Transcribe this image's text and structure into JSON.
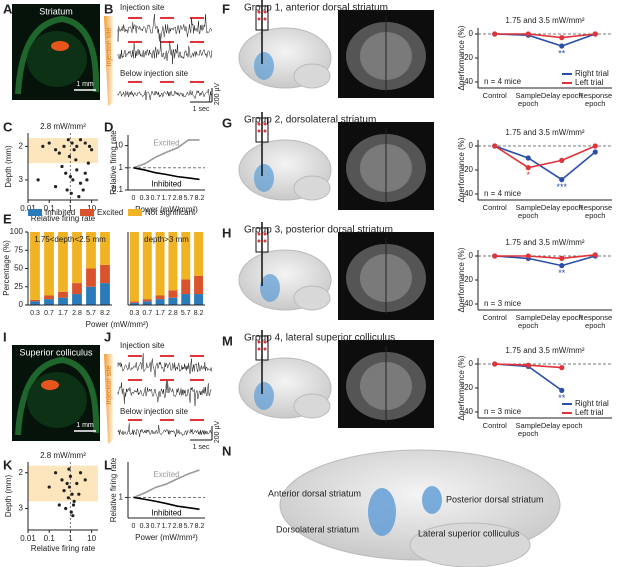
{
  "panel_letters": [
    "A",
    "B",
    "C",
    "D",
    "E",
    "I",
    "J",
    "K",
    "L",
    "F",
    "G",
    "H",
    "M",
    "N"
  ],
  "panels": {
    "A": {
      "title": "Striatum",
      "scale": "1 mm"
    },
    "B": {
      "side_label": "Injection site",
      "top_label": "Injection site",
      "below_label": "Below injection site",
      "voltage_scale": "200 µV",
      "time_scale": "1 sec"
    },
    "I": {
      "title": "Superior colliculus",
      "scale": "1 mm"
    },
    "J": {
      "side_label": "Injection site",
      "top_label": "Injection site",
      "below_label": "Below injection site",
      "voltage_scale": "200 µV",
      "time_scale": "1 sec"
    },
    "N": {
      "labels": [
        "Anterior dorsal striatum",
        "Posterior dorsal striatum",
        "Dorsolateral striatum",
        "Lateral superior colliculus"
      ]
    }
  },
  "chart_data": [
    {
      "type": "scatter",
      "title": "2.8 mW/mm²",
      "xlabel": "Relative firing rate",
      "ylabel": "Depth (mm)",
      "x_log": true,
      "y_inverted": true,
      "xlim": [
        0.01,
        20
      ],
      "xticks": [
        0.01,
        0.1,
        1,
        10
      ],
      "ylim": [
        1.6,
        3.6
      ],
      "yticks": [
        2,
        3
      ],
      "highlight_range": [
        1.75,
        2.5
      ],
      "reference_line": 1,
      "color": "#222222",
      "x": [
        0.05,
        0.1,
        0.2,
        0.3,
        0.5,
        0.8,
        1.2,
        1.5,
        2,
        3,
        5,
        8,
        10,
        0.4,
        0.6,
        1,
        1.3,
        2,
        3,
        5,
        0.2,
        0.7,
        1.1,
        4,
        7,
        0.03,
        1.8,
        0.9,
        2.5,
        6
      ],
      "values": [
        2.0,
        1.9,
        2.1,
        2.2,
        2.0,
        1.8,
        1.9,
        2.1,
        2.0,
        1.8,
        1.9,
        2.0,
        2.1,
        2.6,
        2.8,
        2.9,
        3.0,
        2.7,
        3.1,
        2.8,
        3.2,
        3.3,
        3.4,
        3.3,
        2.5,
        3.0,
        2.4,
        2.3,
        3.5,
        3.0
      ]
    },
    {
      "type": "scatter",
      "title": "2.8 mW/mm²",
      "xlabel": "Relative firing rate",
      "ylabel": "Depth (mm)",
      "x_log": true,
      "y_inverted": true,
      "xlim": [
        0.01,
        20
      ],
      "xticks": [
        0.01,
        0.1,
        1,
        10
      ],
      "ylim": [
        1.7,
        3.6
      ],
      "yticks": [
        2,
        3
      ],
      "highlight_range": [
        1.8,
        2.8
      ],
      "reference_line": 1,
      "color": "#222222",
      "x": [
        0.2,
        0.4,
        0.5,
        0.7,
        0.8,
        0.9,
        1,
        1.2,
        1.5,
        2,
        3,
        0.3,
        0.6,
        1.1,
        1.4,
        2.5,
        0.1,
        5,
        1.3,
        0.85
      ],
      "values": [
        2.0,
        2.2,
        2.5,
        2.3,
        2.7,
        2.4,
        2.1,
        2.6,
        2.8,
        2.3,
        2.0,
        2.9,
        3.0,
        3.1,
        2.9,
        2.6,
        2.4,
        2.2,
        3.2,
        1.9
      ]
    },
    {
      "type": "line",
      "xlabel": "Power (mW/mm²)",
      "ylabel": "Relative firing rate",
      "log_y": true,
      "ylim": [
        0.1,
        30
      ],
      "yticks": [
        0.1,
        1,
        10
      ],
      "reference_line": 1,
      "legend": "inline",
      "categories": [
        "0",
        "0.3",
        "0.7",
        "1.7",
        "2.8",
        "5.7",
        "8.2"
      ],
      "series": [
        {
          "name": "Excited",
          "color": "#999999",
          "values": [
            1,
            1.5,
            3,
            5,
            8,
            18,
            18
          ]
        },
        {
          "name": "Inhibited",
          "color": "#000000",
          "values": [
            1,
            0.8,
            0.6,
            0.5,
            0.4,
            0.35,
            0.3
          ]
        }
      ]
    },
    {
      "type": "line",
      "xlabel": "Power (mW/mm²)",
      "ylabel": "Relative firing rate",
      "log_y": true,
      "ylim": [
        0.3,
        8
      ],
      "yticks": [
        1
      ],
      "reference_line": 1,
      "legend": "inline",
      "categories": [
        "0",
        "0.3",
        "0.7",
        "1.7",
        "2.8",
        "5.7",
        "8.2"
      ],
      "series": [
        {
          "name": "Excited",
          "color": "#999999",
          "values": [
            1,
            1.3,
            1.8,
            2.2,
            3,
            4,
            5
          ]
        },
        {
          "name": "Inhibited",
          "color": "#000000",
          "values": [
            1,
            0.9,
            0.8,
            0.7,
            0.6,
            0.55,
            0.5
          ]
        }
      ]
    },
    {
      "type": "stacked_bar",
      "xlabel": "Power (mW/mm²)",
      "ylabel": "Percentage (%)",
      "ylim": [
        0,
        100
      ],
      "yticks": [
        0,
        25,
        50,
        75,
        100
      ],
      "categories": [
        "0.3",
        "0.7",
        "1.7",
        "2.8",
        "5.7",
        "8.2"
      ],
      "series": [
        {
          "name": "Inhibited",
          "color": "#2b7bba"
        },
        {
          "name": "Excited",
          "color": "#d9542c"
        },
        {
          "name": "Not significant",
          "color": "#f0b323"
        }
      ],
      "groups": [
        {
          "subtitle": "1.75<depth<2.5 mm",
          "values": [
            [
              5,
              8,
              10,
              15,
              25,
              30
            ],
            [
              2,
              5,
              8,
              15,
              25,
              25
            ],
            [
              93,
              87,
              82,
              70,
              50,
              45
            ]
          ]
        },
        {
          "subtitle": "depth>3 mm",
          "values": [
            [
              3,
              5,
              8,
              10,
              15,
              15
            ],
            [
              2,
              3,
              5,
              10,
              20,
              25
            ],
            [
              95,
              92,
              87,
              80,
              65,
              60
            ]
          ]
        }
      ]
    },
    {
      "type": "line",
      "title": "Group 1, anterior dorsal striatum",
      "subtitle": "1.75 and 3.5 mW/mm²",
      "note": "n = 4 mice",
      "ylabel": "Δperformance (%)",
      "ylim": [
        -45,
        5
      ],
      "yticks": [
        0,
        -20,
        -40
      ],
      "reference_line": 0,
      "markers": true,
      "legend": "lower right",
      "categories": [
        "Control",
        "Sample epoch",
        "Delay epoch",
        "Response epoch"
      ],
      "series": [
        {
          "name": "Right trial",
          "color": "#2b4fa8",
          "values": [
            0,
            -1,
            -10,
            0
          ]
        },
        {
          "name": "Left trial",
          "color": "#e0333a",
          "values": [
            0,
            0,
            -3,
            0
          ]
        }
      ],
      "annotations": [
        {
          "text": "**",
          "category": "Delay epoch",
          "color": "#2b4fa8"
        }
      ]
    },
    {
      "type": "line",
      "title": "Group 2, dorsolateral striatum",
      "subtitle": "1.75 and 3.5 mW/mm²",
      "note": "n = 4 mice",
      "ylabel": "Δperformance (%)",
      "ylim": [
        -45,
        5
      ],
      "yticks": [
        0,
        -20,
        -40
      ],
      "reference_line": 0,
      "markers": true,
      "categories": [
        "Control",
        "Sample epoch",
        "Delay epoch",
        "Response epoch"
      ],
      "series": [
        {
          "color": "#2b4fa8",
          "values": [
            0,
            -10,
            -28,
            -5
          ]
        },
        {
          "color": "#e0333a",
          "values": [
            0,
            -18,
            -12,
            0
          ]
        }
      ],
      "annotations": [
        {
          "text": "*",
          "category": "Sample epoch",
          "color": "#e0333a"
        },
        {
          "text": "***",
          "category": "Delay epoch",
          "color": "#2b4fa8"
        }
      ]
    },
    {
      "type": "line",
      "title": "Group 3, posterior dorsal striatum",
      "subtitle": "1.75 and 3.5 mW/mm²",
      "note": "n = 3 mice",
      "ylabel": "Δperformance (%)",
      "ylim": [
        -45,
        5
      ],
      "yticks": [
        0,
        -20,
        -40
      ],
      "reference_line": 0,
      "markers": true,
      "categories": [
        "Control",
        "Sample epoch",
        "Delay epoch",
        "Response epoch"
      ],
      "series": [
        {
          "color": "#2b4fa8",
          "values": [
            0,
            -2,
            -8,
            0
          ]
        },
        {
          "color": "#e0333a",
          "values": [
            0,
            0,
            -2,
            1
          ]
        }
      ],
      "annotations": [
        {
          "text": "**",
          "category": "Delay epoch",
          "color": "#2b4fa8"
        }
      ]
    },
    {
      "type": "line",
      "title": "Group 4, lateral superior colliculus",
      "subtitle": "1.75 and 3.5 mW/mm²",
      "note": "n = 3 mice",
      "ylabel": "Δperformance (%)",
      "ylim": [
        -45,
        5
      ],
      "yticks": [
        0,
        -20,
        -40
      ],
      "reference_line": 0,
      "markers": true,
      "legend": "lower right",
      "categories": [
        "Control",
        "Sample epoch",
        "Delay epoch"
      ],
      "series": [
        {
          "name": "Right trial",
          "color": "#2b4fa8",
          "values": [
            0,
            -2,
            -22
          ]
        },
        {
          "name": "Left trial",
          "color": "#e0333a",
          "values": [
            0,
            -1,
            -3
          ]
        }
      ],
      "annotations": [
        {
          "text": "**",
          "category": "Delay epoch",
          "color": "#2b4fa8"
        }
      ]
    }
  ]
}
